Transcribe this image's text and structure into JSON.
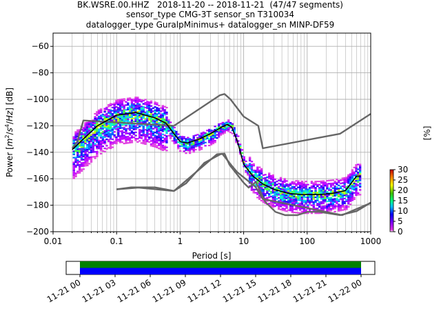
{
  "titles": [
    "BK.WSRE.00.HHZ   2018-11-20 -- 2018-11-21  (47/47 segments)",
    "sensor_type CMG-3T sensor_sn T310034",
    "datalogger_type GuralpMinimus+ datalogger_sn MINP-DF59"
  ],
  "chart_data": [
    {
      "type": "heatmap",
      "title": "BK.WSRE.00.HHZ   2018-11-20 -- 2018-11-21  (47/47 segments)",
      "xlabel": "Period [s]",
      "ylabel": "Power [m²/s⁴/Hz] [dB]",
      "xscale": "log",
      "xlim": [
        0.01,
        1000
      ],
      "ylim": [
        -200,
        -50
      ],
      "x_ticks": [
        "0.01",
        "0.1",
        "1",
        "10",
        "100",
        "1000"
      ],
      "y_ticks": [
        -200,
        -180,
        -160,
        -140,
        -120,
        -100,
        -80,
        -60
      ],
      "grid": true,
      "colorbar": {
        "label": "[%]",
        "range": [
          0,
          30
        ],
        "ticks": [
          0,
          5,
          10,
          15,
          20,
          25,
          30
        ]
      },
      "series": [
        {
          "name": "",
          "style": "gray-noise-model-high",
          "x": [
            0.1,
            0.22,
            0.8,
            3.8,
            4.6,
            6.3,
            7.9,
            15.4,
            20,
            354.8,
            1000
          ],
          "y": [
            -168,
            -166.7,
            -169.2,
            -141.5,
            -141.1,
            -149.4,
            -155,
            -166.2,
            -175.3,
            -187.5,
            -178.3
          ]
        },
        {
          "name": "",
          "style": "gray-noise-model-low",
          "x": [
            0.1,
            0.17,
            0.4,
            0.8,
            1.24,
            2.4,
            4.3,
            5,
            6,
            10,
            12,
            15.6,
            21.9,
            31.6,
            45,
            70,
            101,
            154,
            328,
            600,
            1000
          ],
          "y": [
            -168,
            -166.5,
            -166.5,
            -169.2,
            -163.5,
            -148,
            -141.5,
            -141,
            -149.5,
            -163,
            -166.7,
            -162.5,
            -177.5,
            -185,
            -187.5,
            -187.5,
            -185,
            -185,
            -187.5,
            -184.5,
            -178
          ]
        },
        {
          "name": "",
          "style": "gray-noise-model-upper",
          "x": [
            0.02,
            0.024,
            0.03,
            0.8,
            4.2,
            5,
            6.2,
            10,
            17,
            20,
            330,
            1000
          ],
          "y": [
            -137,
            -132,
            -116,
            -120,
            -97,
            -96,
            -100,
            -113,
            -120,
            -137,
            -126,
            -111
          ]
        },
        {
          "name": "",
          "style": "median",
          "x": [
            0.02,
            0.03,
            0.05,
            0.1,
            0.2,
            0.4,
            0.6,
            0.8,
            1.0,
            1.3,
            2,
            3,
            4.5,
            5.5,
            6.5,
            8,
            10,
            14,
            20,
            30,
            50,
            80,
            150,
            250,
            400,
            500,
            600,
            700
          ],
          "y": [
            -138,
            -130,
            -120,
            -112,
            -110,
            -114,
            -118,
            -126,
            -132,
            -133,
            -130,
            -126,
            -121,
            -119,
            -121,
            -132,
            -149,
            -158,
            -164,
            -168,
            -171,
            -172,
            -172,
            -171,
            -169,
            -163,
            -158,
            -158
          ]
        }
      ]
    },
    {
      "type": "timeline",
      "x_ticks": [
        "11-21 00",
        "11-21 03",
        "11-21 06",
        "11-21 09",
        "11-21 12",
        "11-21 15",
        "11-21 18",
        "11-21 21",
        "11-22 00"
      ],
      "series": [
        {
          "name": "",
          "color": "#0000ff",
          "start": "11-21 00",
          "end": "11-22 00"
        },
        {
          "name": "",
          "color": "#008000",
          "start": "11-21 00",
          "end": "11-22 00"
        }
      ]
    }
  ],
  "colors": {
    "grid": "#b0b0b0",
    "noise_model": "#666666",
    "median": "#000000",
    "timeline_data": "#0000ff",
    "timeline_gaps_ok": "#008000"
  },
  "labels": {
    "xlabel": "Period [s]",
    "ylabel_prefix": "Power [",
    "ylabel_suffix": "] [dB]",
    "colorbar_label": "[%]"
  }
}
